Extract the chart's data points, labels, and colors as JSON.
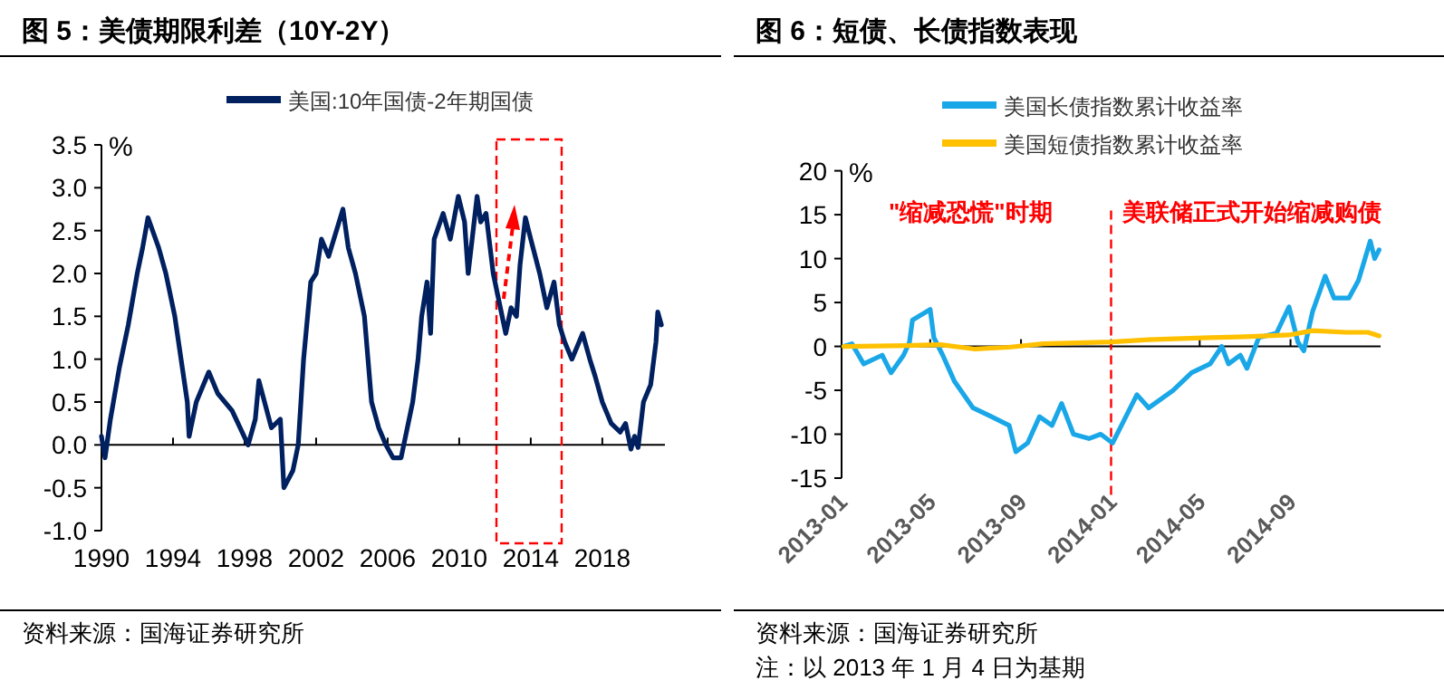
{
  "chart_data": [
    {
      "type": "line",
      "title": "图 5：美债期限利差（10Y-2Y）",
      "ylabel": "%",
      "xlim": [
        1990,
        2021.5
      ],
      "xticks": [
        1990,
        1994,
        1998,
        2002,
        2006,
        2010,
        2014,
        2018
      ],
      "ylim": [
        -1.0,
        3.5
      ],
      "yticks": [
        {
          "value": -1.0,
          "label": "-1.0"
        },
        {
          "value": -0.5,
          "label": "-0.5"
        },
        {
          "value": 0,
          "label": "0.0"
        },
        {
          "value": 0.5,
          "label": "0.5"
        },
        {
          "value": 1.0,
          "label": "1.0"
        },
        {
          "value": 1.5,
          "label": "1.5"
        },
        {
          "value": 2.0,
          "label": "2.0"
        },
        {
          "value": 2.5,
          "label": "2.5"
        },
        {
          "value": 3.0,
          "label": "3.0"
        },
        {
          "value": 3.5,
          "label": "3.5"
        }
      ],
      "legend": "top",
      "series": [
        {
          "name": "美国:10年国债-2年期国债",
          "color": "#002060",
          "x": [
            1990.0,
            1990.2,
            1990.5,
            1991.0,
            1991.5,
            1992.0,
            1992.3,
            1992.6,
            1993.2,
            1993.6,
            1994.1,
            1994.45,
            1994.8,
            1994.9,
            1995.3,
            1996.0,
            1996.5,
            1997.3,
            1998.2,
            1998.6,
            1998.8,
            1999.5,
            2000.0,
            2000.2,
            2000.7,
            2001.0,
            2001.3,
            2001.7,
            2002.0,
            2002.3,
            2002.7,
            2003.5,
            2003.8,
            2004.2,
            2004.7,
            2004.9,
            2005.1,
            2005.5,
            2005.9,
            2006.3,
            2006.75,
            2007.4,
            2007.7,
            2007.9,
            2008.2,
            2008.4,
            2008.6,
            2009.1,
            2009.5,
            2009.95,
            2010.3,
            2010.5,
            2011.0,
            2011.2,
            2011.5,
            2011.9,
            2012.3,
            2012.6,
            2012.9,
            2013.2,
            2013.4,
            2013.7,
            2014.0,
            2014.5,
            2014.9,
            2015.3,
            2015.6,
            2015.9,
            2016.3,
            2016.9,
            2017.3,
            2017.6,
            2018.0,
            2018.5,
            2019.0,
            2019.3,
            2019.6,
            2019.8,
            2020.0,
            2020.3,
            2020.7,
            2021.0,
            2021.1,
            2021.3
          ],
          "values": [
            0.1,
            -0.15,
            0.3,
            0.9,
            1.4,
            2.0,
            2.3,
            2.65,
            2.3,
            2.0,
            1.5,
            1.0,
            0.5,
            0.1,
            0.5,
            0.85,
            0.6,
            0.4,
            0.0,
            0.3,
            0.75,
            0.2,
            0.3,
            -0.5,
            -0.3,
            0.0,
            1.0,
            1.9,
            2.0,
            2.4,
            2.2,
            2.75,
            2.3,
            2.0,
            1.5,
            1.0,
            0.5,
            0.2,
            0.0,
            -0.15,
            -0.15,
            0.5,
            1.0,
            1.5,
            1.9,
            1.3,
            2.4,
            2.7,
            2.4,
            2.9,
            2.6,
            2.0,
            2.9,
            2.6,
            2.7,
            2.0,
            1.6,
            1.3,
            1.6,
            1.5,
            2.1,
            2.65,
            2.4,
            2.0,
            1.6,
            1.9,
            1.4,
            1.2,
            1.0,
            1.3,
            1.0,
            0.8,
            0.5,
            0.25,
            0.15,
            0.25,
            -0.05,
            0.1,
            -0.03,
            0.5,
            0.7,
            1.2,
            1.55,
            1.4
          ]
        }
      ],
      "annotations": [
        "资料来源：国海证券研究所"
      ]
    },
    {
      "type": "line",
      "title": "图 6：短债、长债指数表现",
      "ylabel": "%",
      "xlim": [
        "2013-01-01",
        "2015-01-01"
      ],
      "xticks": [
        {
          "value": "2013-01-01",
          "label": "2013-01"
        },
        {
          "value": "2013-05-01",
          "label": "2013-05"
        },
        {
          "value": "2013-09-01",
          "label": "2013-09"
        },
        {
          "value": "2014-01-01",
          "label": "2014-01"
        },
        {
          "value": "2014-05-01",
          "label": "2014-05"
        },
        {
          "value": "2014-09-01",
          "label": "2014-09"
        }
      ],
      "ylim": [
        -15,
        20
      ],
      "yticks": [
        -15,
        -10,
        -5,
        0,
        5,
        10,
        15,
        20
      ],
      "legend": "top",
      "series": [
        {
          "name": "美国长债指数累计收益率",
          "color": "#1aa7e8",
          "x": [
            "2013-01-04",
            "2013-01-15",
            "2013-01-31",
            "2013-02-25",
            "2013-03-09",
            "2013-03-26",
            "2013-04-03",
            "2013-04-07",
            "2013-05-01",
            "2013-05-06",
            "2013-05-18",
            "2013-06-03",
            "2013-06-28",
            "2013-07-23",
            "2013-08-16",
            "2013-08-25",
            "2013-09-10",
            "2013-09-26",
            "2013-10-13",
            "2013-10-26",
            "2013-11-11",
            "2013-12-02",
            "2013-12-18",
            "2014-01-03",
            "2014-01-15",
            "2014-02-05",
            "2014-02-21",
            "2014-03-26",
            "2014-04-20",
            "2014-05-15",
            "2014-05-31",
            "2014-06-09",
            "2014-06-25",
            "2014-07-04",
            "2014-07-20",
            "2014-08-13",
            "2014-08-30",
            "2014-09-11",
            "2014-09-19",
            "2014-10-01",
            "2014-10-18",
            "2014-10-30",
            "2014-11-19",
            "2014-12-02",
            "2014-12-18",
            "2014-12-24",
            "2014-12-30"
          ],
          "values": [
            0,
            0.3,
            -2,
            -1,
            -3,
            -1,
            0.5,
            3,
            4.2,
            1,
            -1,
            -4,
            -7,
            -8,
            -9,
            -12,
            -11,
            -8,
            -9,
            -6.5,
            -10,
            -10.5,
            -10,
            -11,
            -9,
            -5.5,
            -7,
            -5,
            -3,
            -2,
            0,
            -2,
            -1,
            -2.5,
            1,
            1.5,
            4.5,
            0.5,
            -0.5,
            4,
            8,
            5.5,
            5.5,
            7.5,
            12,
            10,
            11
          ]
        },
        {
          "name": "美国短债指数累计收益率",
          "color": "#ffc000",
          "x": [
            "2013-01-04",
            "2013-04-01",
            "2013-05-15",
            "2013-07-01",
            "2013-08-15",
            "2013-10-01",
            "2014-01-01",
            "2014-03-01",
            "2014-05-15",
            "2014-07-01",
            "2014-08-30",
            "2014-10-01",
            "2014-11-15",
            "2014-12-15",
            "2014-12-30"
          ],
          "values": [
            0,
            0.1,
            0.2,
            -0.3,
            -0.1,
            0.3,
            0.5,
            0.8,
            1.0,
            1.1,
            1.3,
            1.8,
            1.6,
            1.6,
            1.2
          ]
        }
      ],
      "ref_lines": [
        {
          "axis": "x",
          "value": "2014-01-01",
          "label": "美联储正式开始缩减购债",
          "color": "#ff0000",
          "line_style": "dashed"
        }
      ],
      "annotations": [
        "\"缩减恐慌\"时期",
        "资料来源：国海证券研究所",
        "注：以 2013 年 1 月 4 日为基期"
      ]
    }
  ]
}
